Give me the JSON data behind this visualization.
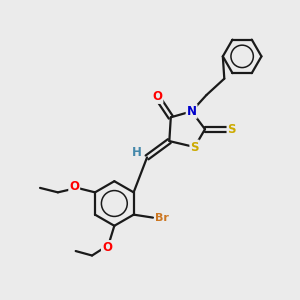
{
  "bg_color": "#ebebeb",
  "bond_color": "#1a1a1a",
  "bond_width": 1.6,
  "atom_colors": {
    "O": "#ff0000",
    "N": "#0000cc",
    "S": "#ccaa00",
    "Br": "#cc7722",
    "H": "#4488aa",
    "C": "#1a1a1a"
  },
  "font_size": 8.5
}
